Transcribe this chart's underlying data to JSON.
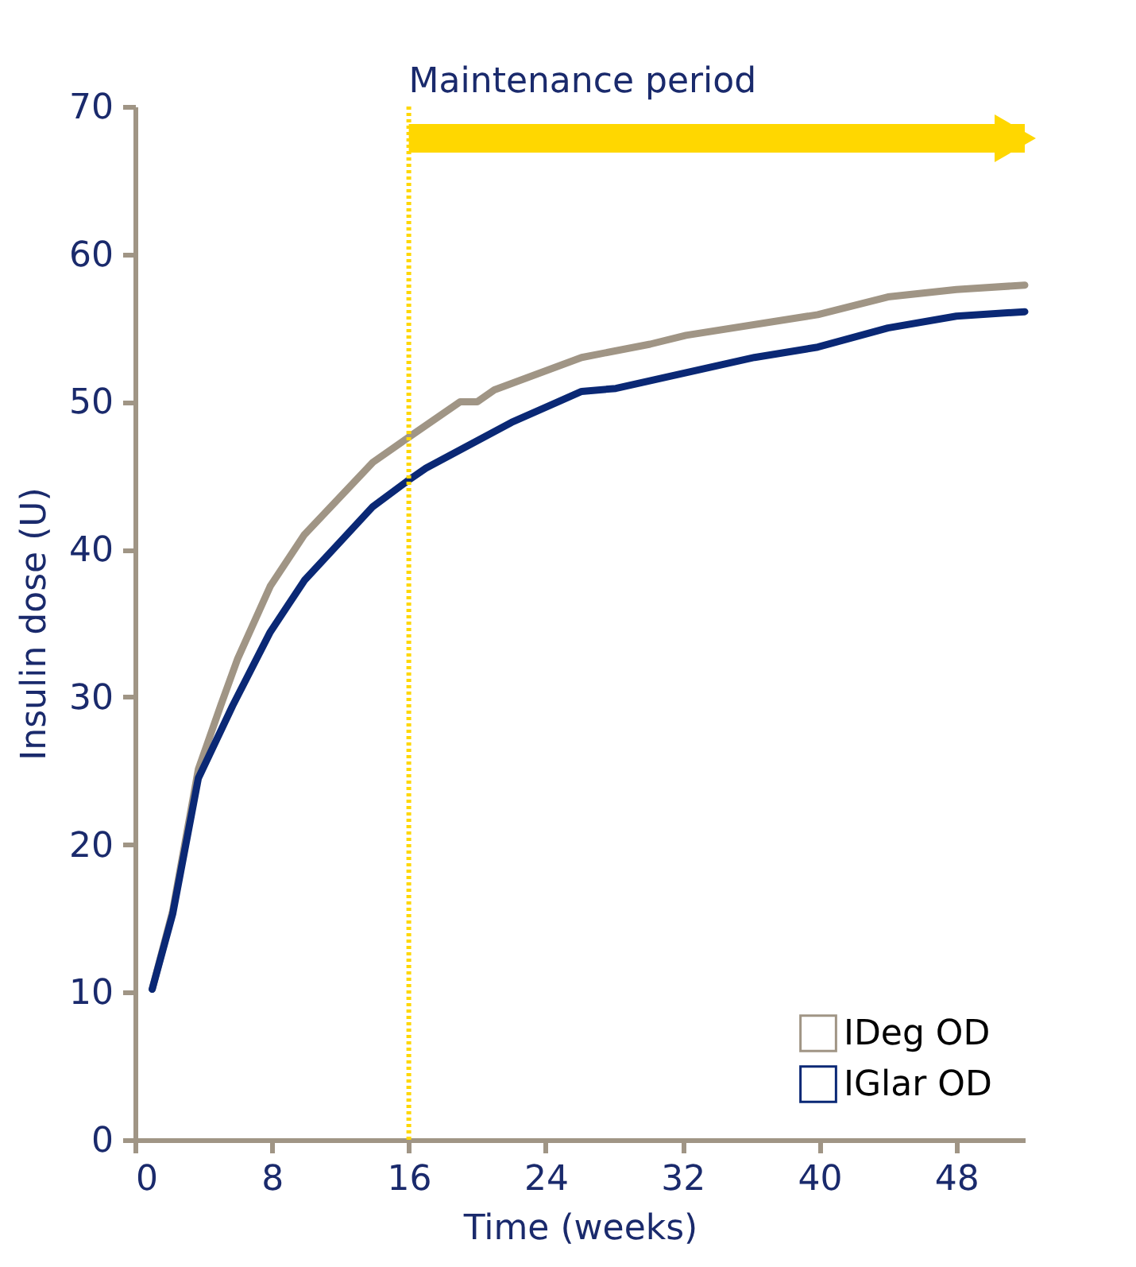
{
  "chart_data": {
    "type": "line",
    "xlabel": "Time (weeks)",
    "ylabel": "Insulin dose (U)",
    "xlim": [
      0,
      52
    ],
    "xticks": [
      0,
      8,
      16,
      24,
      32,
      40,
      48
    ],
    "ylim": [
      0,
      70
    ],
    "yticks": [
      0,
      10,
      20,
      30,
      40,
      50,
      60,
      70
    ],
    "grid": false,
    "legend": "bottom right",
    "marker": "none",
    "line_style": "solid",
    "series": [
      {
        "name": "IDeg OD",
        "color": "#a09585",
        "x": [
          1,
          2.2,
          3.7,
          5,
          6,
          7.9,
          9.9,
          13.9,
          16,
          19,
          20,
          21,
          26.1,
          30.1,
          32.2,
          39.9,
          44,
          48,
          52
        ],
        "values": [
          10.2,
          15.5,
          25.1,
          29.4,
          32.6,
          37.5,
          41,
          45.9,
          47.6,
          50,
          50,
          50.8,
          53,
          53.9,
          54.5,
          55.9,
          57.1,
          57.6,
          57.9
        ]
      },
      {
        "name": "IGlar OD",
        "color": "#0a2875",
        "x": [
          1,
          2.2,
          3.7,
          5.7,
          7.9,
          9.9,
          11.9,
          13.9,
          16,
          17,
          22,
          26.1,
          28.1,
          36.2,
          39.9,
          44,
          48,
          52
        ],
        "values": [
          10.2,
          15.3,
          24.5,
          29.4,
          34.4,
          37.9,
          40.4,
          42.9,
          44.7,
          45.5,
          48.6,
          50.7,
          50.9,
          53,
          53.7,
          55,
          55.8,
          56.1
        ]
      }
    ],
    "ref_lines": [
      {
        "axis": "x",
        "value": 16,
        "color": "#ffd700",
        "line_style": "dotted"
      }
    ],
    "annotations": [
      "Maintenance period"
    ]
  }
}
